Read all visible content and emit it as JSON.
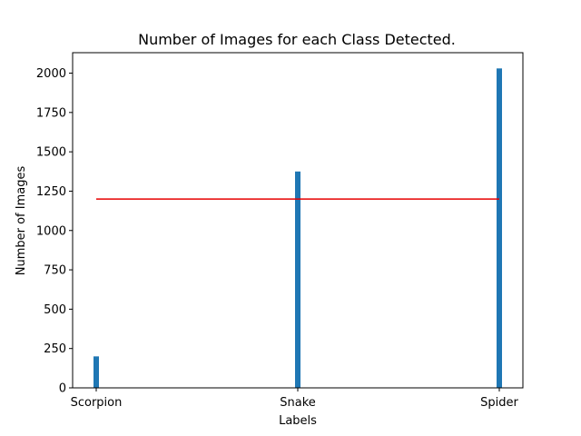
{
  "chart_data": {
    "type": "bar",
    "title": "Number of Images for each Class Detected.",
    "xlabel": "Labels",
    "ylabel": "Number of Images",
    "categories": [
      "Scorpion",
      "Snake",
      "Spider"
    ],
    "values": [
      200,
      1375,
      2030
    ],
    "ylim": [
      0,
      2130
    ],
    "yticks": [
      "0",
      "250",
      "500",
      "750",
      "1000",
      "1250",
      "1500",
      "1750",
      "2000"
    ],
    "reference_line": {
      "value": 1200,
      "color": "#e60000"
    },
    "bar_color": "#1f77b4",
    "grid": false,
    "legend": "none"
  }
}
